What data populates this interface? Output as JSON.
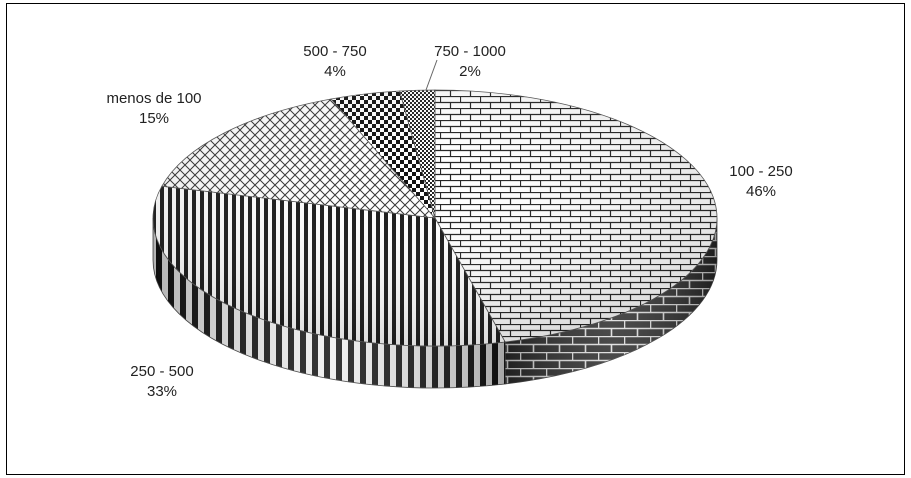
{
  "chart_data": {
    "type": "pie",
    "title": "",
    "categories": [
      "100 - 250",
      "250 - 500",
      "menos de 100",
      "500 - 750",
      "750 - 1000"
    ],
    "values": [
      46,
      33,
      15,
      4,
      2
    ],
    "labels": [
      {
        "name": "100 - 250",
        "pct": "46%"
      },
      {
        "name": "250 - 500",
        "pct": "33%"
      },
      {
        "name": "menos de 100",
        "pct": "15%"
      },
      {
        "name": "500 - 750",
        "pct": "4%"
      },
      {
        "name": "750 - 1000",
        "pct": "2%"
      }
    ],
    "patterns": [
      "bricks",
      "vertical-stripes",
      "diagonal-crosshatch",
      "checkerboard",
      "small-checker"
    ],
    "colors": {
      "ink": "#1a1a1a",
      "paper": "#ffffff"
    },
    "legend": "none",
    "style": "3d-exploded-none"
  }
}
